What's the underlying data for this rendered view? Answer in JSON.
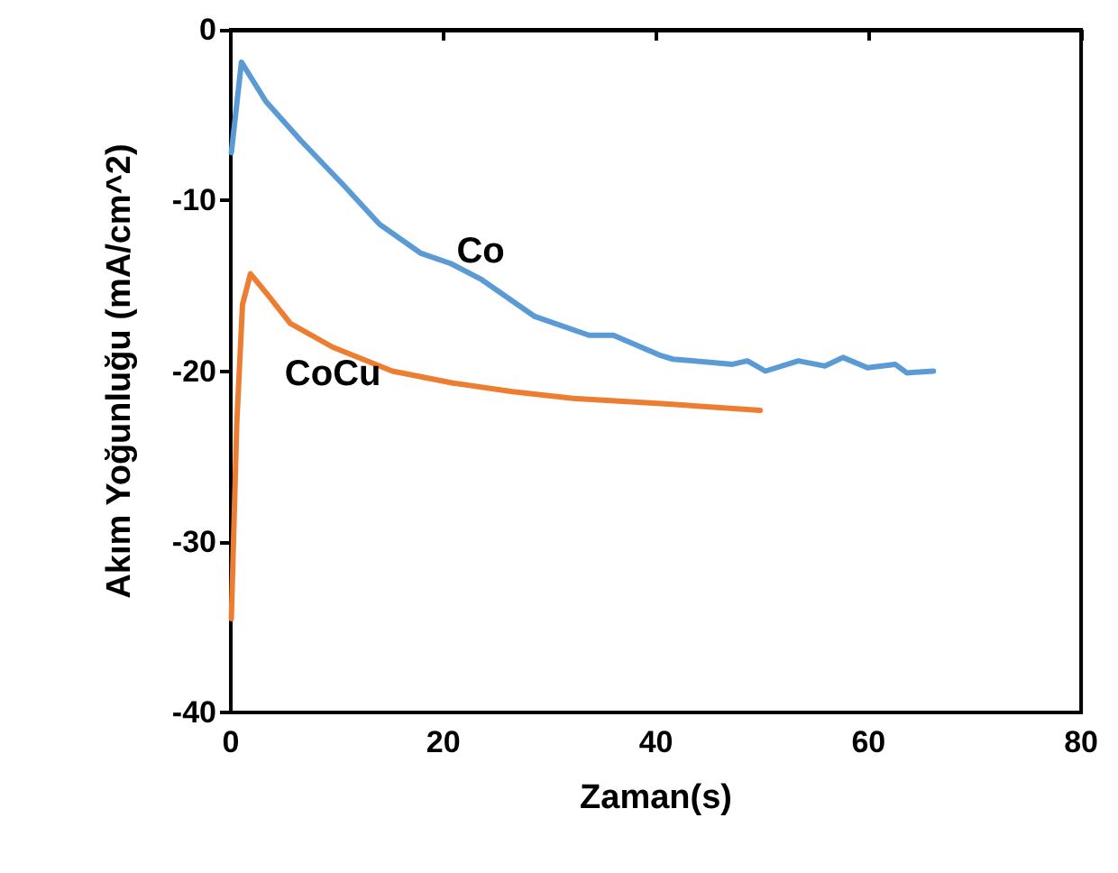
{
  "chart_data": {
    "type": "line",
    "xlabel": "Zaman(s)",
    "ylabel": "Akım Yoğunluğu (mA/cm^2)",
    "xlim": [
      0,
      80
    ],
    "xticks": [
      0,
      20,
      40,
      60,
      80
    ],
    "ylim": [
      -40,
      0
    ],
    "yticks": [
      -40,
      -30,
      -20,
      -10,
      0
    ],
    "grid": false,
    "legend": false,
    "marker": "none",
    "line_style": "solid",
    "series": [
      {
        "name": "Co",
        "color": "#5b9bd5",
        "x": [
          0.05,
          1.0,
          3.3,
          6.6,
          10.6,
          14,
          17.9,
          20.7,
          23.5,
          28.6,
          33.7,
          35.4,
          36,
          40.5,
          41.6,
          47.2,
          48.6,
          50.3,
          53.4,
          55.9,
          57.6,
          59.9,
          62.5,
          63.6,
          66.1
        ],
        "values": [
          -7.2,
          -1.9,
          -4.2,
          -6.5,
          -9.1,
          -11.4,
          -13.1,
          -13.7,
          -14.6,
          -16.8,
          -17.9,
          -17.9,
          -17.9,
          -19.1,
          -19.3,
          -19.6,
          -19.4,
          -20.0,
          -19.4,
          -19.7,
          -19.2,
          -19.8,
          -19.6,
          -20.1,
          -20.0
        ]
      },
      {
        "name": "CoCu",
        "color": "#ed7d31",
        "x": [
          0.05,
          0.56,
          1.1,
          1.85,
          3.3,
          5.6,
          9.6,
          15.2,
          20.9,
          26.5,
          32.2,
          40.5,
          49.8
        ],
        "values": [
          -34.5,
          -23.1,
          -16.1,
          -14.3,
          -15.4,
          -17.2,
          -18.6,
          -20.0,
          -20.7,
          -21.2,
          -21.6,
          -21.9,
          -22.3
        ]
      }
    ]
  }
}
